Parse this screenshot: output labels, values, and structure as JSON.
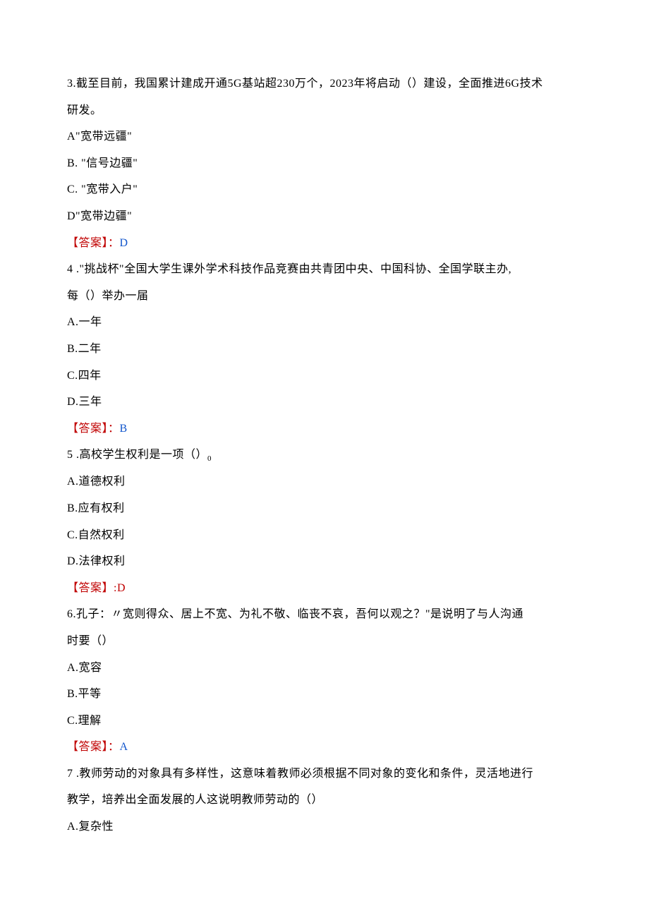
{
  "page": {
    "background_color": "#ffffff",
    "text_color": "#000000",
    "answer_label_color": "#c00000",
    "answer_value_red": "#c00000",
    "answer_value_blue": "#1155cc",
    "font_family": "SimSun",
    "font_size": 16,
    "line_height": 2.35
  },
  "questions": [
    {
      "number": "3",
      "text_line1": "3.截至目前，我国累计建成开通5G基站超230万个，2023年将启动（）建设，全面推进6G技术",
      "text_line2": "研发。",
      "options": [
        "A\"宽带远疆\"",
        "B.  \"信号边疆\"",
        "C.  \"宽带入户\"",
        "D\"宽带边疆\""
      ],
      "answer_label": "【答案】：",
      "answer_value": "D",
      "answer_color": "blue"
    },
    {
      "number": "4",
      "text_line1": "4 .\"挑战杯\"全国大学生课外学术科技作品竞赛由共青团中央、中国科协、全国学联主办,",
      "text_line2": "每（）举办一届",
      "options": [
        "A.一年",
        "B.二年",
        "C.四年",
        "D.三年"
      ],
      "answer_label": "【答案】：",
      "answer_value": "B",
      "answer_color": "blue"
    },
    {
      "number": "5",
      "text_line1": "5 .高校学生权利是一项（）",
      "subscript": "0",
      "options": [
        "A.道德权利",
        "B.应有权利",
        "C.自然权利",
        "D.法律权利"
      ],
      "answer_label": "【答案】",
      "answer_value": ":D",
      "answer_color": "red"
    },
    {
      "number": "6",
      "text_line1": "6.孔子：〃宽则得众、居上不宽、为礼不敬、临丧不哀，吾何以观之？\"是说明了与人沟通",
      "text_line2": "时要（）",
      "options": [
        "A.宽容",
        "B.平等",
        "C.理解"
      ],
      "answer_label": "【答案】：",
      "answer_value": "A",
      "answer_color": "blue"
    },
    {
      "number": "7",
      "text_line1": "7 .教师劳动的对象具有多样性，这意味着教师必须根据不同对象的变化和条件，灵活地进行",
      "text_line2": "教学，培养出全面发展的人这说明教师劳动的（）",
      "options": [
        "A.复杂性"
      ]
    }
  ]
}
